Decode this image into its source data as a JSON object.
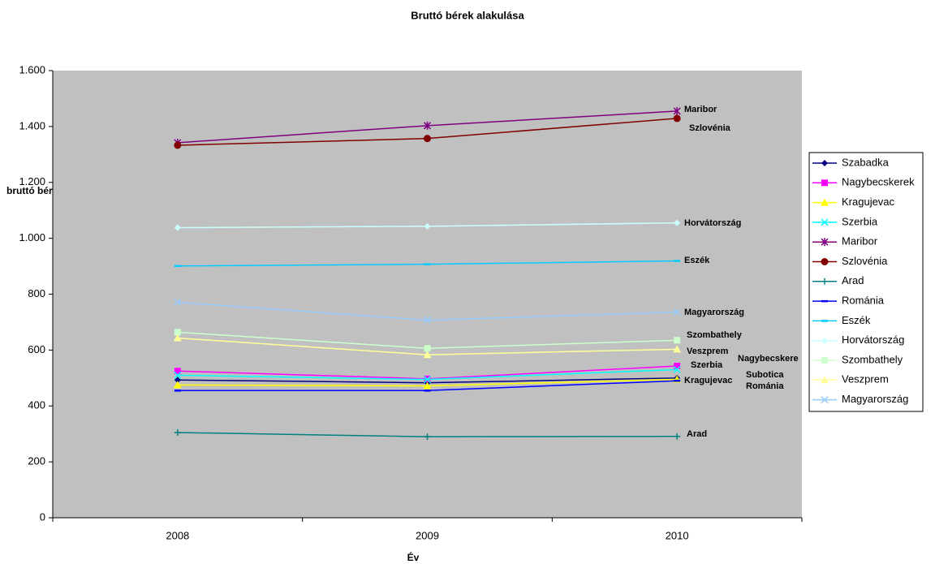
{
  "chart_data": {
    "type": "line",
    "title": "Bruttó bérek alakulása",
    "x_label": "Év",
    "y_label": "bruttó bérek Euró/hó",
    "categories": [
      "2008",
      "2009",
      "2010"
    ],
    "ylim": [
      0,
      1600
    ],
    "yticks": [
      0,
      200,
      400,
      600,
      800,
      {
        "value": 1000,
        "label": "1.000"
      },
      {
        "value": 1200,
        "label": "1.200"
      },
      {
        "value": 1400,
        "label": "1.400"
      },
      {
        "value": 1600,
        "label": "1.600"
      }
    ],
    "legend": "right",
    "plot_background": "#c0c0c0",
    "series": [
      {
        "name": "Szabadka",
        "color": "#000080",
        "marker": "diamond",
        "values": [
          493,
          483,
          500
        ]
      },
      {
        "name": "Nagybecskerek",
        "color": "#ff00ff",
        "marker": "square",
        "values": [
          525,
          497,
          543
        ]
      },
      {
        "name": "Kragujevac",
        "color": "#ffff00",
        "marker": "triangle",
        "values": [
          475,
          472,
          495
        ]
      },
      {
        "name": "Szerbia",
        "color": "#00ffff",
        "marker": "x",
        "values": [
          510,
          495,
          530
        ]
      },
      {
        "name": "Maribor",
        "color": "#800080",
        "marker": "star",
        "values": [
          1342,
          1403,
          1455
        ]
      },
      {
        "name": "Szlovénia",
        "color": "#800000",
        "marker": "circle",
        "values": [
          1333,
          1357,
          1429
        ]
      },
      {
        "name": "Arad",
        "color": "#008080",
        "marker": "plus",
        "values": [
          305,
          290,
          291
        ]
      },
      {
        "name": "Románia",
        "color": "#0000ff",
        "marker": "dash",
        "values": [
          455,
          455,
          490
        ]
      },
      {
        "name": "Eszék",
        "color": "#00ccff",
        "marker": "dash",
        "values": [
          901,
          907,
          919
        ]
      },
      {
        "name": "Horvátország",
        "color": "#ccffff",
        "marker": "diamond",
        "values": [
          1038,
          1043,
          1055
        ]
      },
      {
        "name": "Szombathely",
        "color": "#ccffcc",
        "marker": "square",
        "values": [
          664,
          606,
          635
        ]
      },
      {
        "name": "Veszprem",
        "color": "#ffff99",
        "marker": "triangle",
        "values": [
          643,
          583,
          603
        ]
      },
      {
        "name": "Magyarország",
        "color": "#99ccff",
        "marker": "x",
        "values": [
          771,
          707,
          736
        ]
      }
    ],
    "annotations": [
      "Maribor",
      "Szlovénia",
      "Horvátország",
      "Eszék",
      "Magyarország",
      "Szombathely",
      "Veszprem",
      "Nagybecskere",
      "Szerbia",
      "Subotica",
      "Kragujevac",
      "Románia",
      "Arad"
    ]
  }
}
